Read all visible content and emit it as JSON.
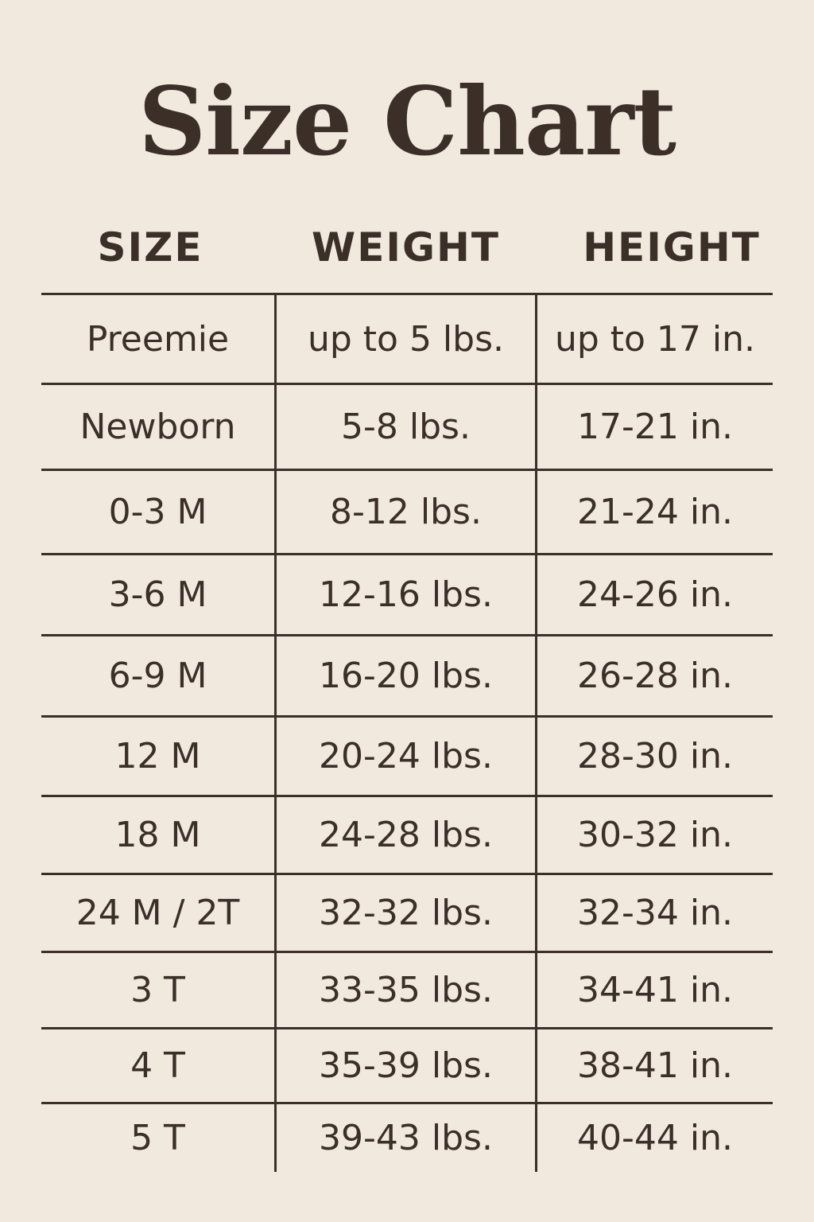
{
  "title": "Size Chart",
  "columns": [
    "SIZE",
    "WEIGHT",
    "HEIGHT"
  ],
  "rows": [
    [
      "Preemie",
      "up to 5 lbs.",
      "up to 17 in."
    ],
    [
      "Newborn",
      "5-8 lbs.",
      "17-21 in."
    ],
    [
      "0-3 M",
      "8-12 lbs.",
      "21-24 in."
    ],
    [
      "3-6 M",
      "12-16 lbs.",
      "24-26 in."
    ],
    [
      "6-9 M",
      "16-20 lbs.",
      "26-28 in."
    ],
    [
      "12 M",
      "20-24 lbs.",
      "28-30 in."
    ],
    [
      "18 M",
      "24-28 lbs.",
      "30-32 in."
    ],
    [
      "24 M / 2T",
      "32-32 lbs.",
      "32-34 in."
    ],
    [
      "3 T",
      "33-35 lbs.",
      "34-41 in."
    ],
    [
      "4 T",
      "35-39 lbs.",
      "38-41 in."
    ],
    [
      "5 T",
      "39-43 lbs.",
      "40-44 in."
    ]
  ],
  "colors": {
    "background": "#f1e9de",
    "text": "#3b2f27"
  }
}
